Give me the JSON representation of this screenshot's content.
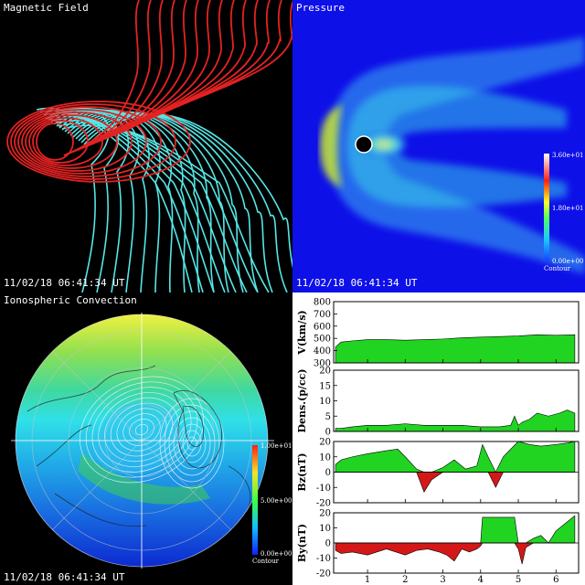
{
  "panels": {
    "magnetic": {
      "title": "Magnetic Field",
      "timestamp": "11/02/18 06:41:34 UT"
    },
    "pressure": {
      "title": "Pressure",
      "timestamp": "11/02/18 06:41:34 UT",
      "colorbar": {
        "max": "3.60e+01",
        "mid": "1.80e+01",
        "min": "0.00e+00",
        "label": "Contour"
      }
    },
    "convection": {
      "title": "Ionospheric Convection",
      "timestamp": "11/02/18 06:41:34 UT",
      "colorbar": {
        "max": "1.00e+01",
        "mid": "5.00e+00",
        "min": "0.00e+00",
        "label": "Contour"
      }
    }
  },
  "colors": {
    "field_closed": "#e42222",
    "field_open": "#55e6e6",
    "fill_positive": "#22d422",
    "fill_negative": "#d41818"
  },
  "chart_data": [
    {
      "type": "area",
      "ylabel": "V(km/s)",
      "ylim": [
        300,
        800
      ],
      "yticks": [
        "800",
        "700",
        "600",
        "500",
        "400",
        "300"
      ],
      "ytick_values": [
        800,
        700,
        600,
        500,
        400,
        300
      ],
      "x": [
        0.15,
        0.3,
        0.6,
        1,
        1.5,
        2,
        2.5,
        3,
        3.5,
        4,
        4.5,
        5,
        5.5,
        6,
        6.5
      ],
      "values": [
        430,
        470,
        480,
        490,
        490,
        485,
        490,
        495,
        505,
        510,
        515,
        520,
        530,
        525,
        530
      ]
    },
    {
      "type": "area",
      "ylabel": "Dens.(p/cc)",
      "ylim": [
        0,
        20
      ],
      "yticks": [
        "20",
        "15",
        "10",
        "5",
        "0"
      ],
      "ytick_values": [
        20,
        15,
        10,
        5,
        0
      ],
      "x": [
        0.15,
        0.3,
        0.6,
        1,
        1.5,
        2,
        2.5,
        3,
        3.5,
        4,
        4.5,
        4.8,
        4.9,
        5,
        5.1,
        5.3,
        5.5,
        5.8,
        6.1,
        6.3,
        6.5
      ],
      "values": [
        1,
        1,
        1.5,
        2,
        2,
        2.5,
        2,
        2,
        2,
        1.5,
        1.5,
        2,
        5,
        2,
        3,
        4,
        6,
        5,
        6,
        7,
        6
      ]
    },
    {
      "type": "area",
      "ylabel": "Bz(nT)",
      "ylim": [
        -20,
        20
      ],
      "yticks": [
        "20",
        "10",
        "0",
        "-10",
        "-20"
      ],
      "ytick_values": [
        20,
        10,
        0,
        -10,
        -20
      ],
      "x": [
        0.15,
        0.3,
        0.6,
        1,
        1.5,
        1.8,
        2,
        2.3,
        2.5,
        2.7,
        3,
        3.3,
        3.6,
        3.9,
        4.05,
        4.2,
        4.4,
        4.6,
        4.8,
        5,
        5.3,
        5.6,
        6,
        6.3,
        6.5
      ],
      "values": [
        5,
        8,
        10,
        12,
        14,
        15,
        10,
        2,
        -13,
        -5,
        3,
        8,
        2,
        4,
        18,
        10,
        -10,
        10,
        15,
        20,
        18,
        17,
        18,
        19,
        20
      ]
    },
    {
      "type": "area",
      "ylabel": "By(nT)",
      "ylim": [
        -20,
        20
      ],
      "yticks": [
        "20",
        "10",
        "0",
        "-10",
        "-20"
      ],
      "ytick_values": [
        20,
        10,
        0,
        -10,
        -20
      ],
      "x": [
        0.15,
        0.3,
        0.6,
        1,
        1.5,
        2,
        2.3,
        2.6,
        2.9,
        3.1,
        3.3,
        3.5,
        3.7,
        3.9,
        4.0,
        4.05,
        4.9,
        5.0,
        5.1,
        5.2,
        5.4,
        5.6,
        5.8,
        6.0,
        6.3,
        6.5
      ],
      "values": [
        -5,
        -7,
        -6,
        -8,
        -4,
        -8,
        -5,
        -4,
        -6,
        -8,
        -12,
        -4,
        -6,
        -4,
        -2,
        17,
        17,
        -4,
        -14,
        -3,
        3,
        5,
        0,
        8,
        14,
        18
      ]
    },
    {
      "type": "axis",
      "xticks": [
        "1",
        "2",
        "3",
        "4",
        "5",
        "6"
      ],
      "xtick_values": [
        1,
        2,
        3,
        4,
        5,
        6
      ],
      "xlim": [
        0.1,
        6.6
      ]
    }
  ]
}
